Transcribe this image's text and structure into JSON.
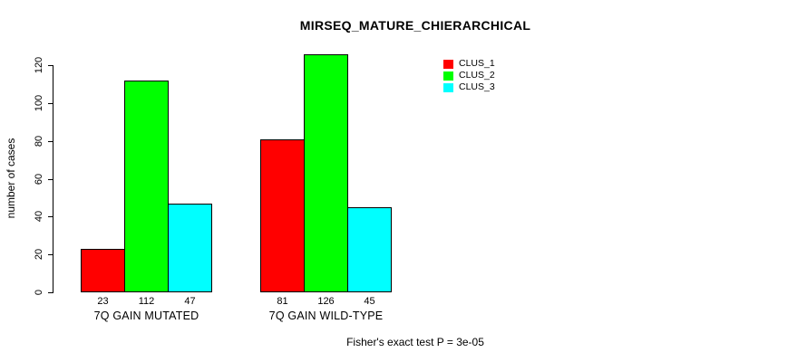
{
  "chart_data": {
    "type": "bar",
    "title": "MIRSEQ_MATURE_CHIERARCHICAL",
    "xlabel": "",
    "ylabel": "number of cases",
    "categories": [
      "7Q GAIN MUTATED",
      "7Q GAIN WILD-TYPE"
    ],
    "series": [
      {
        "name": "CLUS_1",
        "color": "#ff0000",
        "values": [
          23,
          81
        ]
      },
      {
        "name": "CLUS_2",
        "color": "#00ff00",
        "values": [
          112,
          126
        ]
      },
      {
        "name": "CLUS_3",
        "color": "#00ffff",
        "values": [
          47,
          45
        ]
      }
    ],
    "yticks": [
      0,
      20,
      40,
      60,
      80,
      100,
      120
    ],
    "ylim": [
      0,
      126
    ],
    "grid": false,
    "legend_position": "top-right",
    "bar_border_color": "#000000",
    "annotation": "Fisher's exact test P = 3e-05"
  }
}
